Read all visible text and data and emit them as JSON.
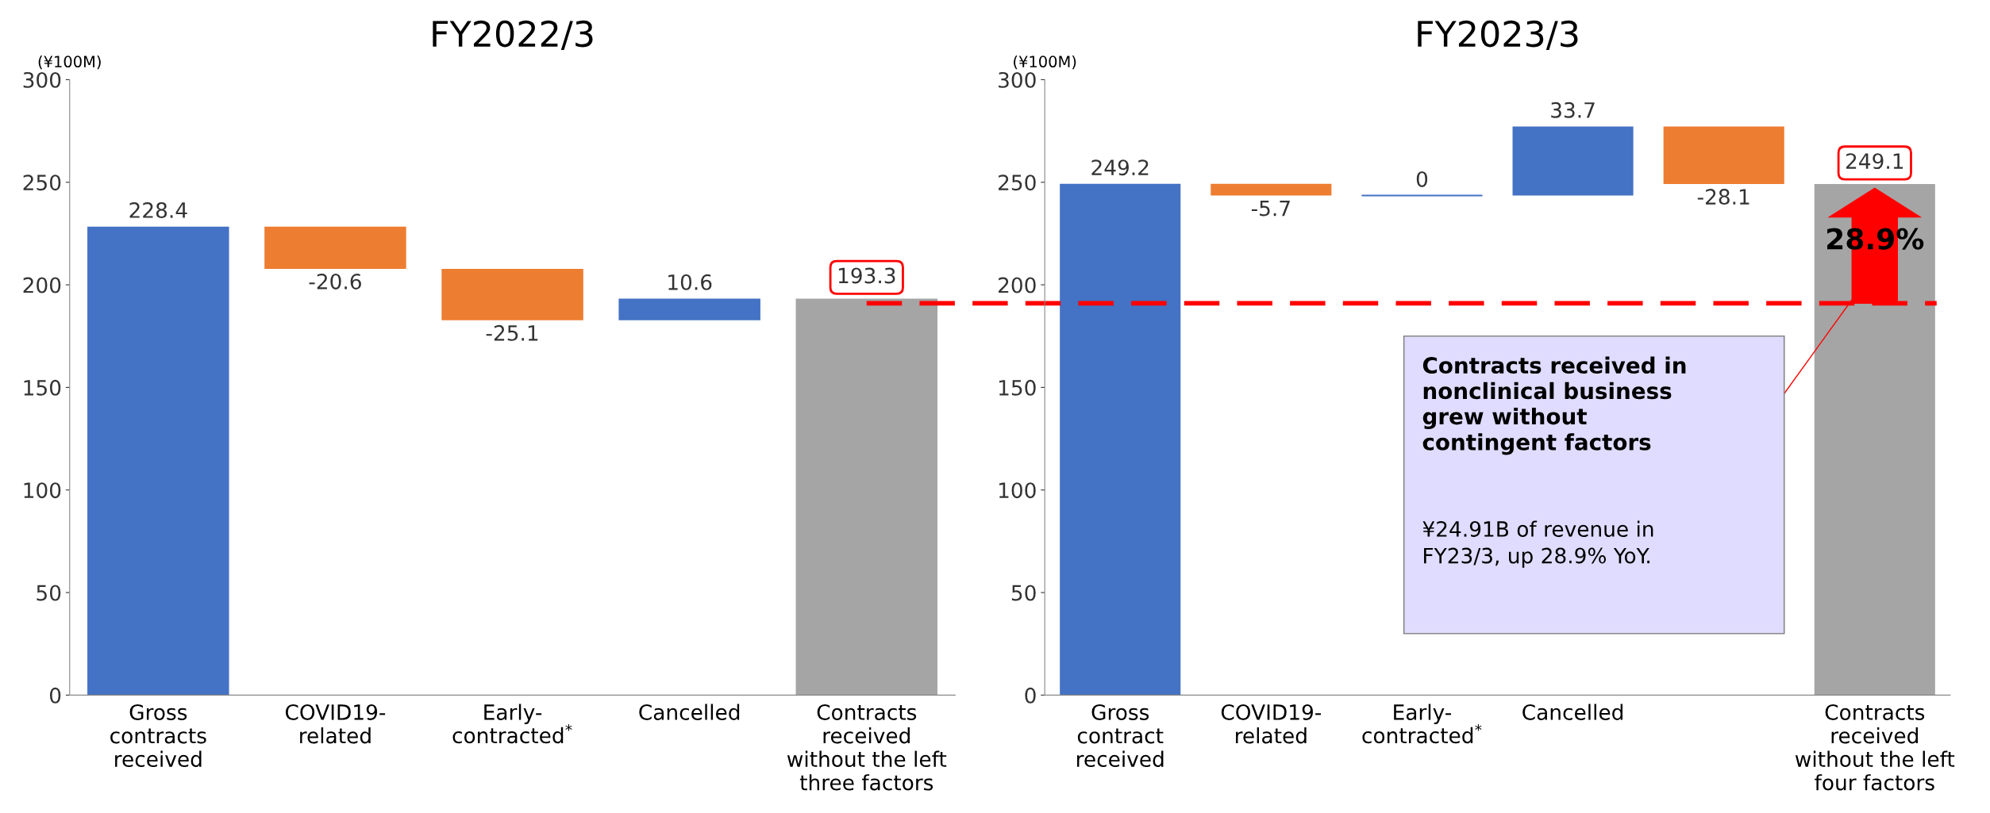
{
  "chart_data": [
    {
      "type": "bar",
      "title": "FY2022/3",
      "ylabel": "(¥100M)",
      "categories": [
        "Gross\ncontracts\nreceived",
        "COVID19-\nrelated",
        "Early-\ncontracted$^{*}$",
        "Cancelled",
        "Contracts\nreceived\nwithout the left\nthree factors"
      ],
      "values": [
        228.4,
        -20.6,
        -25.1,
        10.6,
        193.3
      ],
      "base": [
        0,
        228.4,
        207.8,
        182.7,
        0
      ],
      "colors": [
        "#4472c4",
        "#ed7d31",
        "#ed7d31",
        "#4472c4",
        "#a5a5a5"
      ],
      "ylim": [
        0,
        300
      ],
      "yticks": [
        0,
        50,
        100,
        150,
        200,
        250,
        300
      ],
      "grid": false,
      "data_labels": true
    },
    {
      "type": "bar",
      "title": "FY2023/3",
      "ylabel": "(¥100M)",
      "categories": [
        "Gross\ncontract\nreceived",
        "COVID19-\nrelated",
        "Early-\ncontracted$^{*}$",
        "Cancelled",
        null,
        "Contracts\nreceived\nwithout the left\nfour factors"
      ],
      "values": [
        249.2,
        -5.7,
        0,
        33.7,
        -28.1,
        249.1
      ],
      "base": [
        0,
        249.2,
        243.5,
        243.5,
        277.2,
        0
      ],
      "colors": [
        "#4472c4",
        "#ed7d31",
        "#4472c4",
        "#4472c4",
        "#ed7d31",
        "#a5a5a5"
      ],
      "ylim": [
        0,
        300
      ],
      "yticks": [
        0,
        50,
        100,
        150,
        200,
        250,
        300
      ],
      "grid": false,
      "data_labels": true,
      "ref_lines": [
        {
          "axis": "y",
          "value": 191,
          "color": "#ff0000",
          "line_style": "dashed"
        }
      ],
      "annotations": [
        {
          "text": "28.9%",
          "x": "Contracts\nreceived\nwithout the left\nfour factors",
          "y": 249.1
        },
        "Contracts received in\nnonclinical business\ngrew without\ncontingent factors",
        "¥24.91B of revenue in\nFY23/3, up 28.9% YoY."
      ]
    }
  ]
}
